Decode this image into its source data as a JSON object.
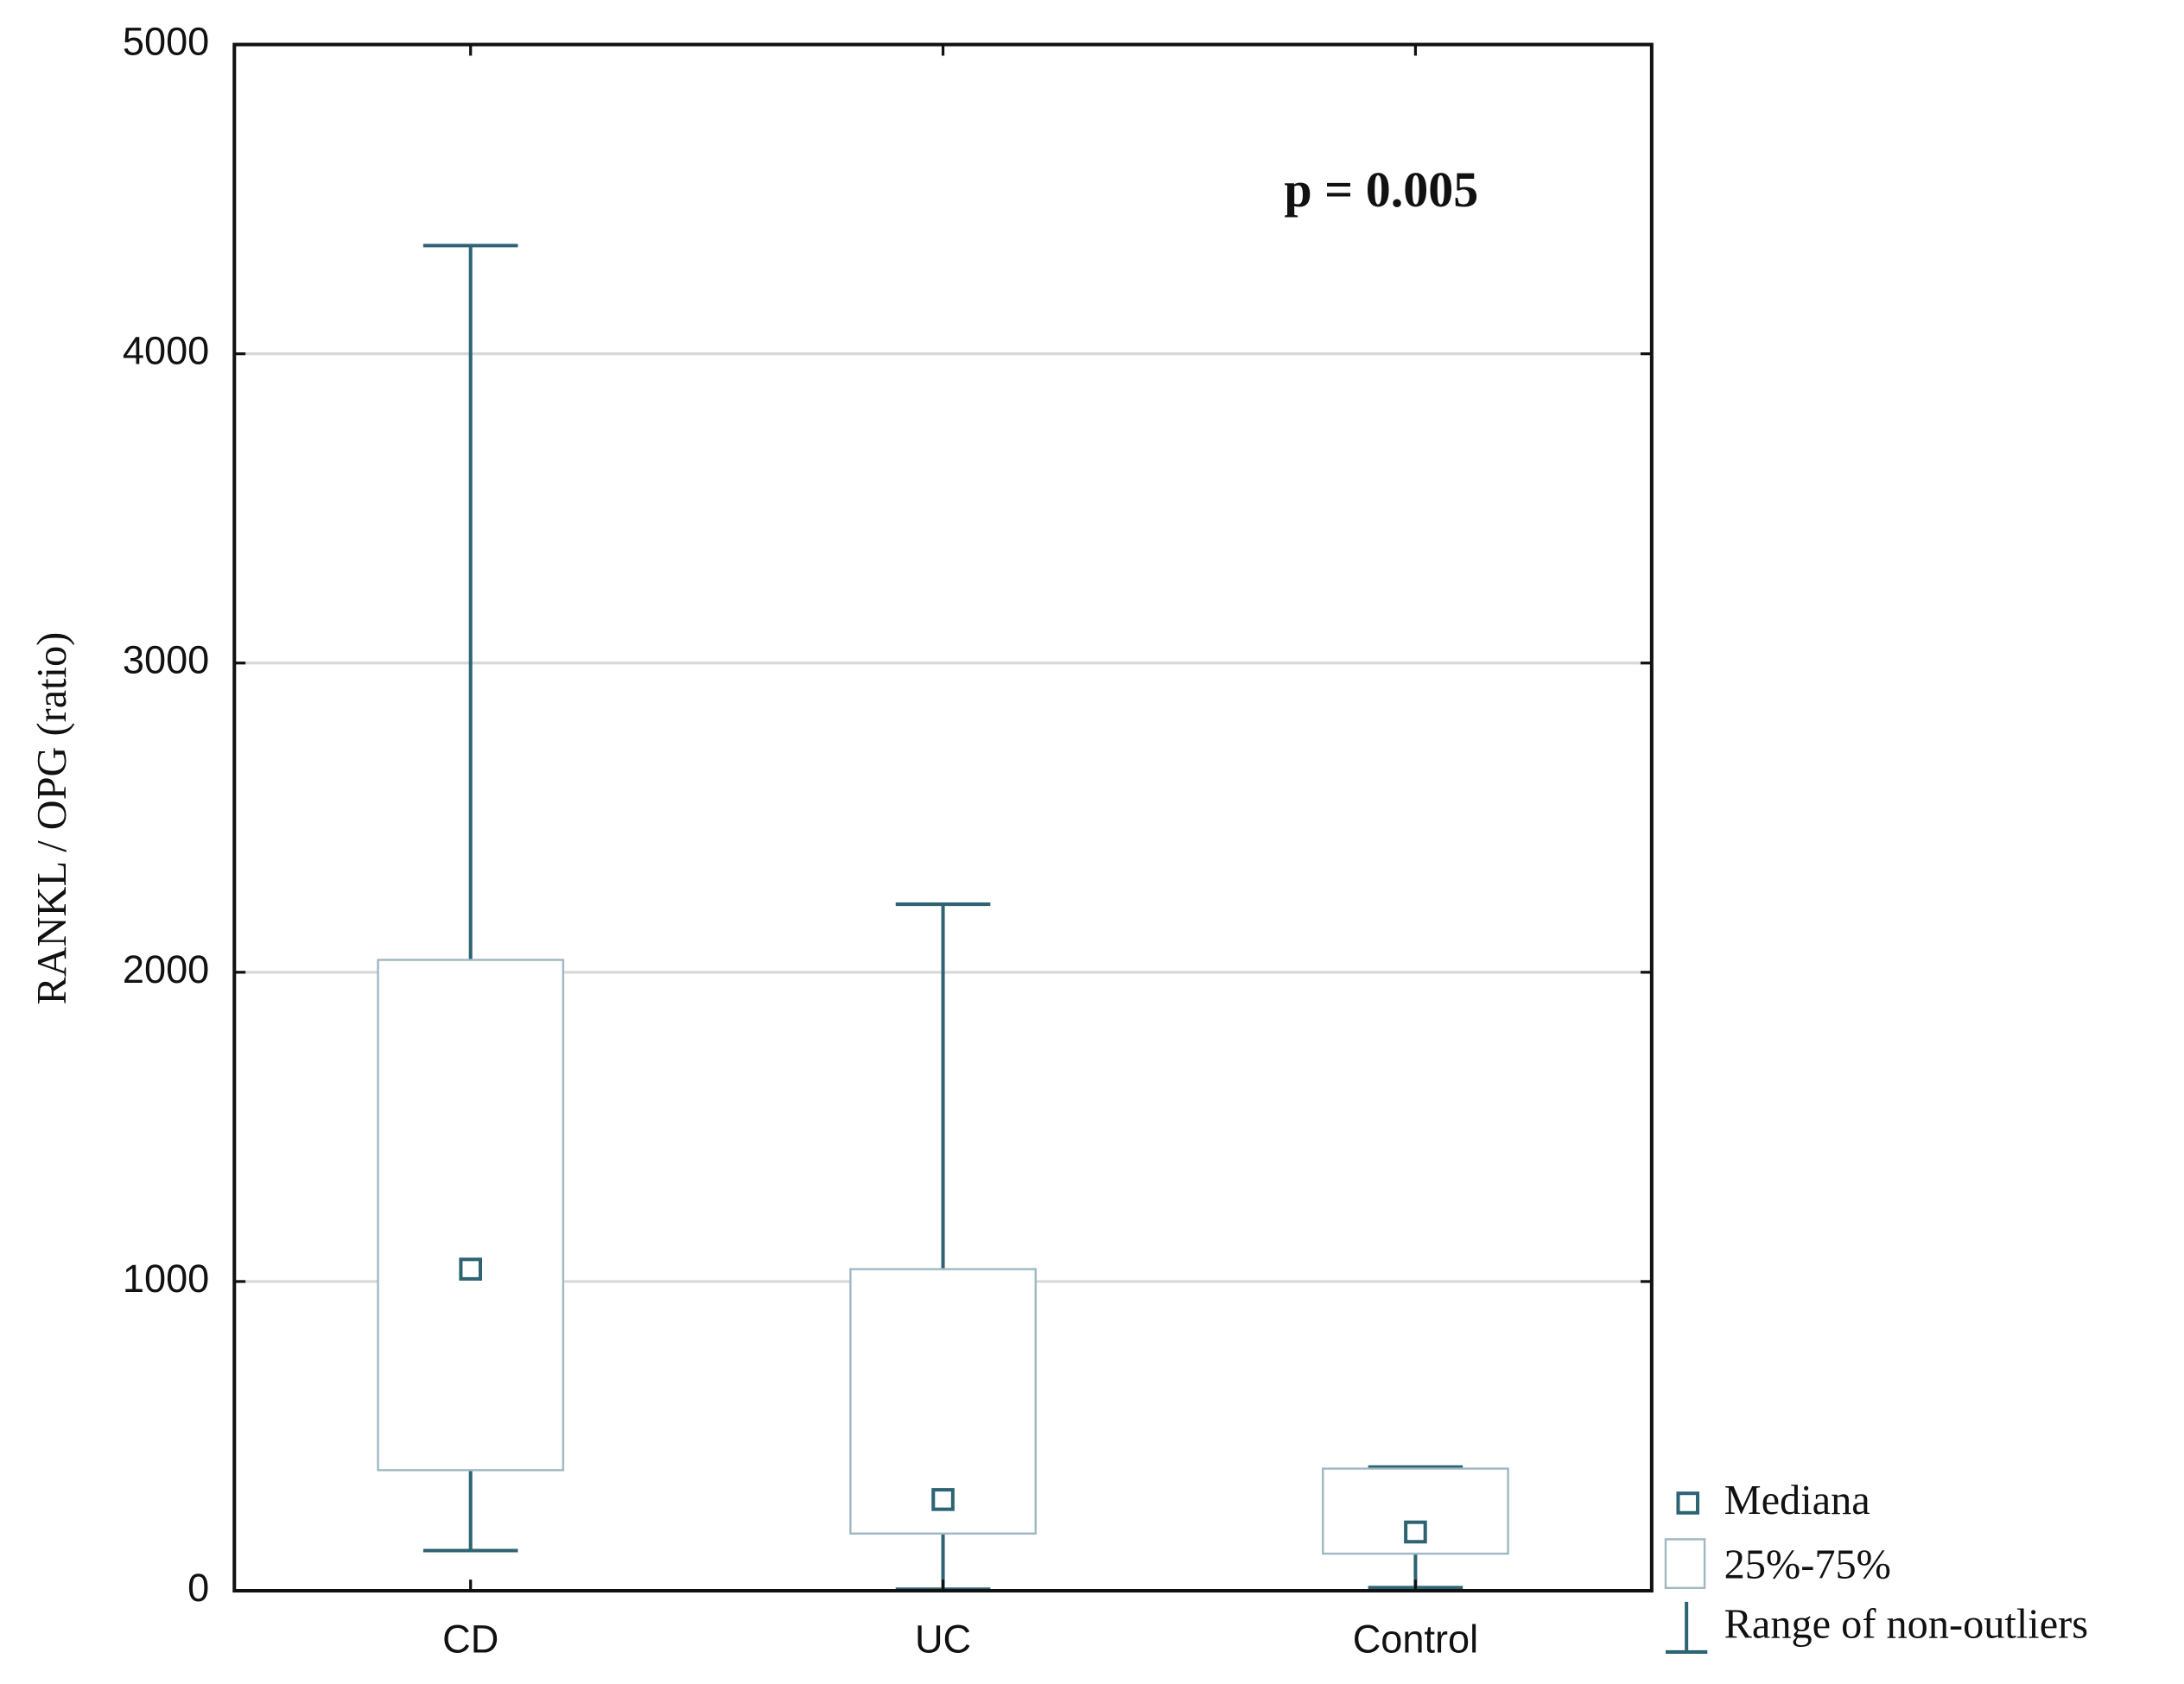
{
  "chart_data": {
    "type": "box",
    "ylabel": "RANKL / OPG (ratio)",
    "annotation": "p = 0.005",
    "categories": [
      "CD",
      "UC",
      "Control"
    ],
    "boxes": [
      {
        "min": 130,
        "q1": 390,
        "median": 1040,
        "q3": 2040,
        "max": 4350
      },
      {
        "min": 5,
        "q1": 185,
        "median": 295,
        "q3": 1040,
        "max": 2220
      },
      {
        "min": 10,
        "q1": 120,
        "median": 190,
        "q3": 395,
        "max": 400
      }
    ],
    "legend": [
      "Mediana",
      "25%-75%",
      "Range of non-outliers"
    ],
    "color": "#2e6373",
    "box_color": "#9fb8c2",
    "ylim": [
      0,
      5000
    ],
    "yticks": [
      0,
      1000,
      2000,
      3000,
      4000,
      5000
    ],
    "grid": true
  }
}
